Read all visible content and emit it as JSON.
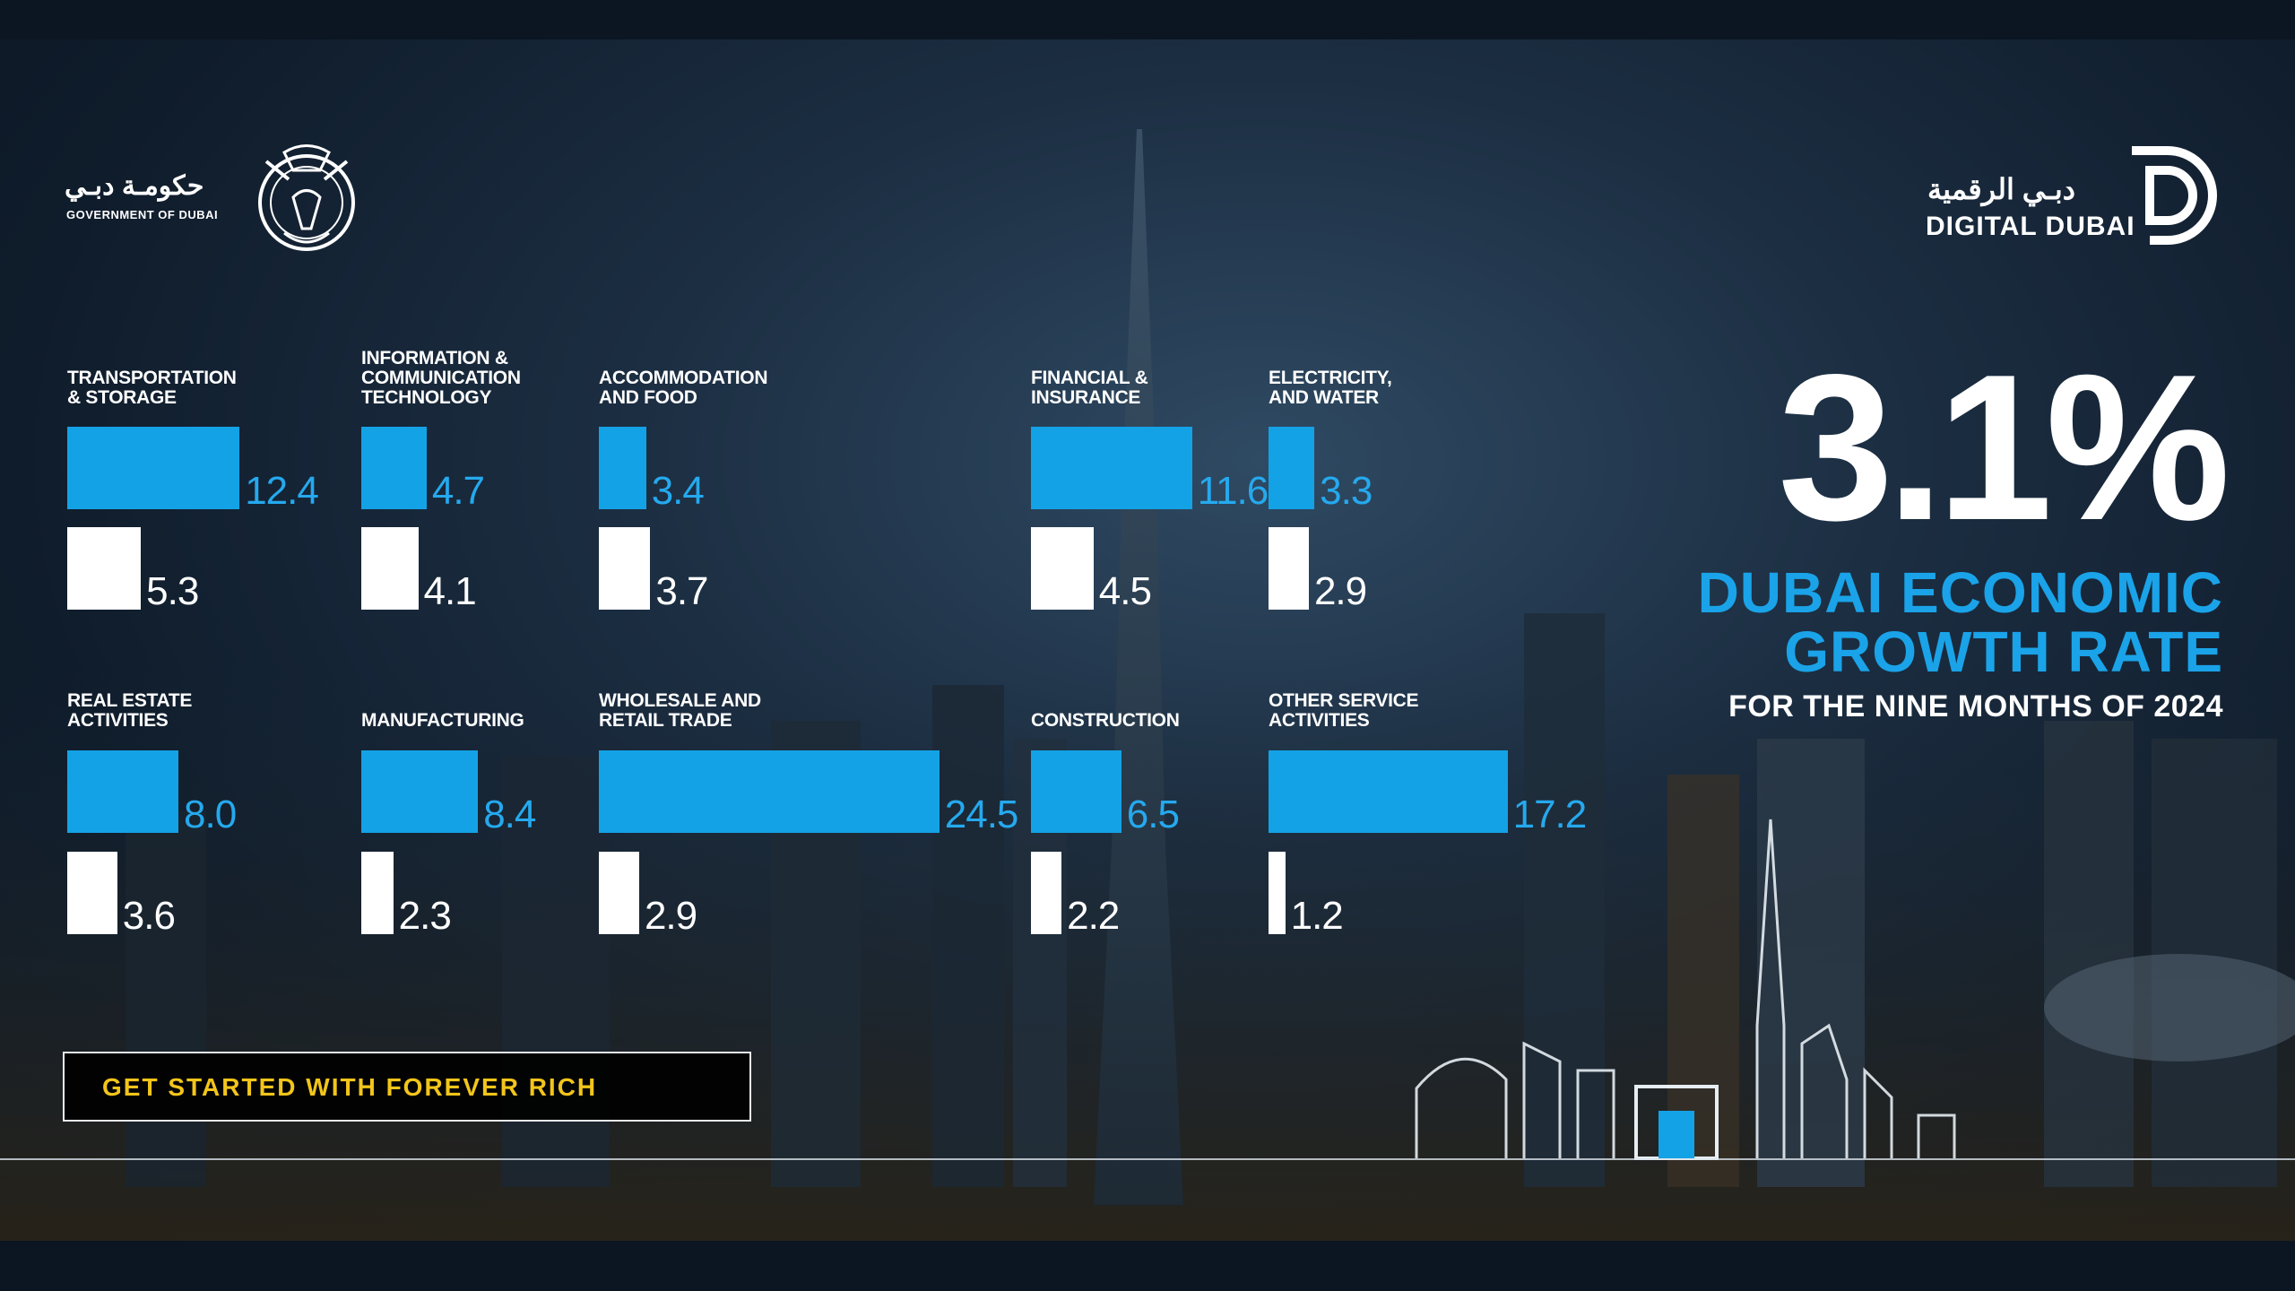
{
  "branding": {
    "gov_arabic": "حكومـة دبـي",
    "gov_english": "GOVERNMENT OF DUBAI",
    "digital_arabic": "دبـي الرقمية",
    "digital_english": "DIGITAL DUBAI"
  },
  "headline": {
    "rate": "3.1%",
    "line1": "DUBAI ECONOMIC",
    "line2": "GROWTH RATE",
    "line3": "FOR THE NINE MONTHS OF 2024"
  },
  "cta": {
    "label": "GET STARTED WITH FOREVER RICH"
  },
  "colors": {
    "blue": "#14a2e6",
    "white": "#ffffff",
    "cta_text": "#f2c51a"
  },
  "chart_data": {
    "type": "bar",
    "title": "DUBAI ECONOMIC GROWTH RATE",
    "series": [
      {
        "name": "blue",
        "values": [
          12.4,
          4.7,
          3.4,
          11.6,
          3.3,
          8.0,
          8.4,
          24.5,
          6.5,
          17.2
        ]
      },
      {
        "name": "white",
        "values": [
          5.3,
          4.1,
          3.7,
          4.5,
          2.9,
          3.6,
          2.3,
          2.9,
          2.2,
          1.2
        ]
      }
    ],
    "categories": [
      {
        "lines": [
          "TRANSPORTATION",
          "& STORAGE"
        ],
        "blue": "12.4",
        "white": "5.3"
      },
      {
        "lines": [
          "INFORMATION &",
          "COMMUNICATION",
          "TECHNOLOGY"
        ],
        "blue": "4.7",
        "white": "4.1"
      },
      {
        "lines": [
          "ACCOMMODATION",
          "AND FOOD"
        ],
        "blue": "3.4",
        "white": "3.7"
      },
      {
        "lines": [
          "FINANCIAL &",
          "INSURANCE"
        ],
        "blue": "11.6",
        "white": "4.5"
      },
      {
        "lines": [
          "ELECTRICITY,",
          "AND WATER"
        ],
        "blue": "3.3",
        "white": "2.9"
      },
      {
        "lines": [
          "REAL ESTATE",
          "ACTIVITIES"
        ],
        "blue": "8.0",
        "white": "3.6"
      },
      {
        "lines": [
          "MANUFACTURING"
        ],
        "blue": "8.4",
        "white": "2.3"
      },
      {
        "lines": [
          "WHOLESALE AND",
          "RETAIL TRADE"
        ],
        "blue": "24.5",
        "white": "2.9"
      },
      {
        "lines": [
          "CONSTRUCTION"
        ],
        "blue": "6.5",
        "white": "2.2"
      },
      {
        "lines": [
          "OTHER SERVICE",
          "ACTIVITIES"
        ],
        "blue": "17.2",
        "white": "1.2"
      }
    ]
  }
}
